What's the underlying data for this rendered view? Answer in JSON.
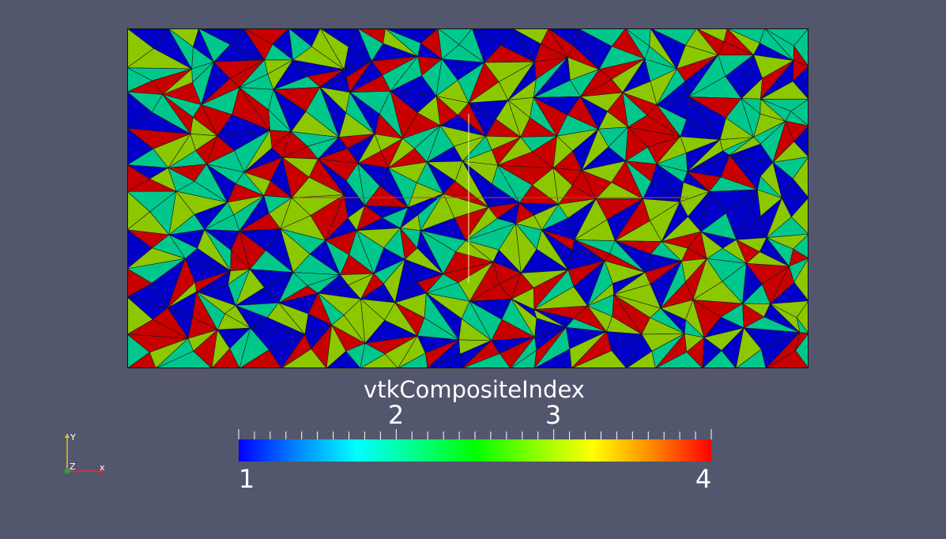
{
  "window": {
    "background": "#52576e"
  },
  "mesh": {
    "description_colors": {
      "1": "#0000c8",
      "2": "#00c88c",
      "3": "#8cc800",
      "4": "#c80000"
    },
    "edge_color": "#1a1a1a",
    "cursor_colors": {
      "vertical": "#ffff9a",
      "horizontal": "#c83c3c"
    }
  },
  "colorbar": {
    "title": "vtkCompositeIndex",
    "min_label": "1",
    "max_label": "4",
    "tick_labels": [
      "2",
      "3"
    ],
    "range": [
      1,
      4
    ],
    "colormap": [
      "#0000ff",
      "#0088ff",
      "#00ffff",
      "#00ff88",
      "#00ff00",
      "#88ff00",
      "#ffff00",
      "#ff8800",
      "#ff0000"
    ]
  },
  "orientation_axes": {
    "x_label": "x",
    "y_label": "Y",
    "z_label": "Z",
    "x_color": "#e03030",
    "y_color": "#e0c030",
    "z_color": "#30a030"
  }
}
